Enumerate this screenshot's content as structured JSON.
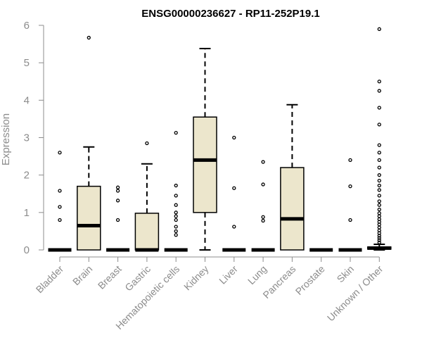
{
  "chart_data": {
    "type": "boxplot",
    "title": "ENSG00000236627 - RP11-252P19.1",
    "xlabel": "",
    "ylabel": "Expression",
    "ylim": [
      0,
      6
    ],
    "yticks": [
      0,
      1,
      2,
      3,
      4,
      5,
      6
    ],
    "grid": false,
    "box_fill": "#ece6cc",
    "categories": [
      "Bladder",
      "Brain",
      "Breast",
      "Gastric",
      "Hematopoietic cells",
      "Kidney",
      "Liver",
      "Lung",
      "Pancreas",
      "Prostate",
      "Skin",
      "Unknown / Other"
    ],
    "boxes": [
      {
        "q1": 0,
        "median": 0,
        "q3": 0,
        "whisker_low": 0,
        "whisker_high": 0,
        "outliers": [
          2.6,
          1.58,
          1.15,
          0.8
        ]
      },
      {
        "q1": 0,
        "median": 0.65,
        "q3": 1.7,
        "whisker_low": 0,
        "whisker_high": 2.75,
        "outliers": [
          5.67
        ]
      },
      {
        "q1": 0,
        "median": 0,
        "q3": 0,
        "whisker_low": 0,
        "whisker_high": 0,
        "outliers": [
          1.67,
          1.58,
          1.32,
          0.8
        ]
      },
      {
        "q1": 0,
        "median": 0,
        "q3": 0.98,
        "whisker_low": 0,
        "whisker_high": 2.3,
        "outliers": [
          2.85
        ]
      },
      {
        "q1": 0,
        "median": 0,
        "q3": 0,
        "whisker_low": 0,
        "whisker_high": 0,
        "outliers": [
          3.13,
          1.72,
          1.45,
          1.2,
          1.0,
          0.9,
          0.8,
          0.62,
          0.5,
          0.4
        ]
      },
      {
        "q1": 1.0,
        "median": 2.4,
        "q3": 3.55,
        "whisker_low": 0,
        "whisker_high": 5.38,
        "outliers": []
      },
      {
        "q1": 0,
        "median": 0,
        "q3": 0,
        "whisker_low": 0,
        "whisker_high": 0,
        "outliers": [
          3.0,
          1.65,
          0.62
        ]
      },
      {
        "q1": 0,
        "median": 0,
        "q3": 0,
        "whisker_low": 0,
        "whisker_high": 0,
        "outliers": [
          2.35,
          1.75,
          0.88,
          0.78
        ]
      },
      {
        "q1": 0,
        "median": 0.83,
        "q3": 2.2,
        "whisker_low": 0,
        "whisker_high": 3.88,
        "outliers": []
      },
      {
        "q1": 0,
        "median": 0,
        "q3": 0,
        "whisker_low": 0,
        "whisker_high": 0,
        "outliers": []
      },
      {
        "q1": 0,
        "median": 0,
        "q3": 0,
        "whisker_low": 0,
        "whisker_high": 0,
        "outliers": [
          2.4,
          1.7,
          0.8
        ]
      },
      {
        "q1": 0.02,
        "median": 0.05,
        "q3": 0.08,
        "whisker_low": 0,
        "whisker_high": 0.15,
        "outliers": [
          5.9,
          4.5,
          4.25,
          3.8,
          3.35,
          2.8,
          2.6,
          2.4,
          2.2,
          2.0,
          1.85,
          1.72,
          1.6,
          1.45,
          1.3,
          1.2,
          1.08,
          0.98,
          0.9,
          0.82,
          0.75,
          0.68,
          0.6,
          0.52,
          0.45,
          0.38,
          0.32,
          0.26,
          0.2
        ]
      }
    ]
  }
}
